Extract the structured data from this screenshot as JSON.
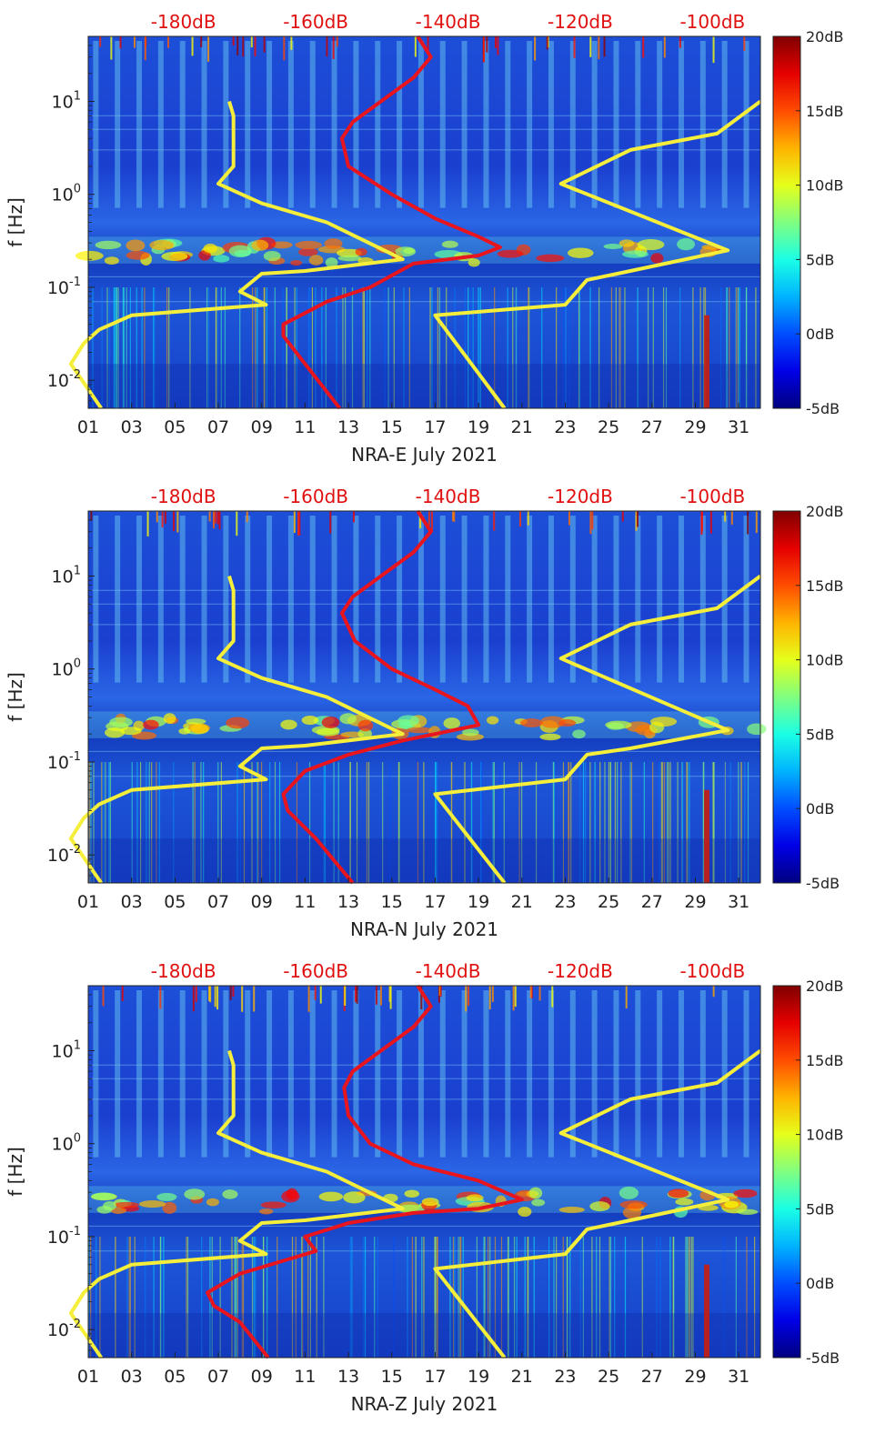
{
  "chart_data": [
    {
      "type": "heatmap",
      "title": "",
      "xlabel": "NRA-E July 2021",
      "ylabel": "f [Hz]",
      "x_day_range": [
        1,
        32
      ],
      "y_log_range": [
        0.005,
        50
      ],
      "x_tick_labels": [
        "01",
        "03",
        "05",
        "07",
        "09",
        "11",
        "13",
        "15",
        "17",
        "19",
        "21",
        "23",
        "25",
        "27",
        "29",
        "31"
      ],
      "y_ticks": [
        {
          "value": 10,
          "exp": "1"
        },
        {
          "value": 1,
          "exp": "0"
        },
        {
          "value": 0.1,
          "exp": "-1"
        },
        {
          "value": 0.01,
          "exp": "-2"
        }
      ],
      "top_axis_labels": [
        "-180dB",
        "-160dB",
        "-140dB",
        "-120dB",
        "-100dB"
      ],
      "colorbar_labels": [
        "20dB",
        "15dB",
        "10dB",
        "5dB",
        "0dB",
        "-5dB"
      ],
      "colorbar_range": [
        -5,
        20
      ],
      "colors": {
        "red_line": "#e8141e",
        "yellow_line": "#f5ee3a"
      },
      "yellow_left": [
        [
          7.5,
          10
        ],
        [
          7.7,
          7
        ],
        [
          7.7,
          2
        ],
        [
          7,
          1.3
        ],
        [
          9,
          0.8
        ],
        [
          12,
          0.5
        ],
        [
          15.5,
          0.2
        ],
        [
          11,
          0.15
        ],
        [
          9,
          0.14
        ],
        [
          8,
          0.09
        ],
        [
          9.2,
          0.065
        ],
        [
          3,
          0.05
        ],
        [
          1.5,
          0.035
        ],
        [
          0.8,
          0.025
        ],
        [
          0.2,
          0.015
        ],
        [
          1.6,
          0.005
        ]
      ],
      "yellow_right": [
        [
          32,
          10
        ],
        [
          30,
          4.5
        ],
        [
          26,
          3
        ],
        [
          22.8,
          1.3
        ],
        [
          30.5,
          0.25
        ],
        [
          26,
          0.15
        ],
        [
          24,
          0.12
        ],
        [
          23,
          0.065
        ],
        [
          17,
          0.05
        ],
        [
          20.2,
          0.005
        ]
      ],
      "red_line": [
        [
          12.6,
          0.005
        ],
        [
          11,
          0.015
        ],
        [
          10,
          0.03
        ],
        [
          10,
          0.04
        ],
        [
          12,
          0.07
        ],
        [
          14,
          0.1
        ],
        [
          16,
          0.18
        ],
        [
          19,
          0.22
        ],
        [
          20,
          0.27
        ],
        [
          19,
          0.35
        ],
        [
          17,
          0.55
        ],
        [
          15,
          1
        ],
        [
          13,
          2
        ],
        [
          12.7,
          4
        ],
        [
          13.2,
          6
        ],
        [
          14.5,
          10
        ],
        [
          16,
          18
        ],
        [
          16.8,
          30
        ],
        [
          16.2,
          50
        ]
      ]
    },
    {
      "type": "heatmap",
      "title": "",
      "xlabel": "NRA-N July 2021",
      "ylabel": "f [Hz]",
      "x_day_range": [
        1,
        32
      ],
      "y_log_range": [
        0.005,
        50
      ],
      "x_tick_labels": [
        "01",
        "03",
        "05",
        "07",
        "09",
        "11",
        "13",
        "15",
        "17",
        "19",
        "21",
        "23",
        "25",
        "27",
        "29",
        "31"
      ],
      "y_ticks": [
        {
          "value": 10,
          "exp": "1"
        },
        {
          "value": 1,
          "exp": "0"
        },
        {
          "value": 0.1,
          "exp": "-1"
        },
        {
          "value": 0.01,
          "exp": "-2"
        }
      ],
      "top_axis_labels": [
        "-180dB",
        "-160dB",
        "-140dB",
        "-120dB",
        "-100dB"
      ],
      "colorbar_labels": [
        "20dB",
        "15dB",
        "10dB",
        "5dB",
        "0dB",
        "-5dB"
      ],
      "colorbar_range": [
        -5,
        20
      ],
      "colors": {
        "red_line": "#e8141e",
        "yellow_line": "#f5ee3a"
      },
      "yellow_left": [
        [
          7.5,
          10
        ],
        [
          7.7,
          7
        ],
        [
          7.7,
          2
        ],
        [
          7,
          1.3
        ],
        [
          9,
          0.8
        ],
        [
          12,
          0.5
        ],
        [
          15.5,
          0.2
        ],
        [
          11,
          0.15
        ],
        [
          9,
          0.14
        ],
        [
          8,
          0.09
        ],
        [
          9.2,
          0.065
        ],
        [
          3,
          0.05
        ],
        [
          1.5,
          0.035
        ],
        [
          0.8,
          0.025
        ],
        [
          0.2,
          0.015
        ],
        [
          1.6,
          0.005
        ]
      ],
      "yellow_right": [
        [
          32,
          10
        ],
        [
          30,
          4.5
        ],
        [
          26,
          3
        ],
        [
          22.8,
          1.3
        ],
        [
          30.5,
          0.22
        ],
        [
          26,
          0.14
        ],
        [
          24,
          0.12
        ],
        [
          23,
          0.065
        ],
        [
          17,
          0.045
        ],
        [
          20.2,
          0.005
        ]
      ],
      "red_line": [
        [
          13.2,
          0.005
        ],
        [
          11.5,
          0.015
        ],
        [
          10.2,
          0.03
        ],
        [
          10,
          0.045
        ],
        [
          11,
          0.08
        ],
        [
          13,
          0.12
        ],
        [
          15.5,
          0.17
        ],
        [
          17,
          0.2
        ],
        [
          19,
          0.25
        ],
        [
          18.5,
          0.4
        ],
        [
          17,
          0.6
        ],
        [
          15,
          1
        ],
        [
          13.3,
          2
        ],
        [
          12.7,
          4
        ],
        [
          13.2,
          6
        ],
        [
          14.5,
          10
        ],
        [
          16,
          18
        ],
        [
          16.8,
          30
        ],
        [
          16.2,
          50
        ]
      ]
    },
    {
      "type": "heatmap",
      "title": "",
      "xlabel": "NRA-Z July 2021",
      "ylabel": "f [Hz]",
      "x_day_range": [
        1,
        32
      ],
      "y_log_range": [
        0.005,
        50
      ],
      "x_tick_labels": [
        "01",
        "03",
        "05",
        "07",
        "09",
        "11",
        "13",
        "15",
        "17",
        "19",
        "21",
        "23",
        "25",
        "27",
        "29",
        "31"
      ],
      "y_ticks": [
        {
          "value": 10,
          "exp": "1"
        },
        {
          "value": 1,
          "exp": "0"
        },
        {
          "value": 0.1,
          "exp": "-1"
        },
        {
          "value": 0.01,
          "exp": "-2"
        }
      ],
      "top_axis_labels": [
        "-180dB",
        "-160dB",
        "-140dB",
        "-120dB",
        "-100dB"
      ],
      "colorbar_labels": [
        "20dB",
        "15dB",
        "10dB",
        "5dB",
        "0dB",
        "-5dB"
      ],
      "colorbar_range": [
        -5,
        20
      ],
      "colors": {
        "red_line": "#e8141e",
        "yellow_line": "#f5ee3a"
      },
      "yellow_left": [
        [
          7.5,
          10
        ],
        [
          7.7,
          7
        ],
        [
          7.7,
          2
        ],
        [
          7,
          1.3
        ],
        [
          9,
          0.8
        ],
        [
          12,
          0.5
        ],
        [
          15.5,
          0.2
        ],
        [
          11,
          0.15
        ],
        [
          9,
          0.14
        ],
        [
          8,
          0.09
        ],
        [
          9.2,
          0.065
        ],
        [
          3,
          0.05
        ],
        [
          1.5,
          0.035
        ],
        [
          0.8,
          0.025
        ],
        [
          0.2,
          0.015
        ],
        [
          1.6,
          0.005
        ]
      ],
      "yellow_right": [
        [
          32,
          10
        ],
        [
          30,
          4.5
        ],
        [
          26,
          3
        ],
        [
          22.8,
          1.3
        ],
        [
          30.5,
          0.25
        ],
        [
          26,
          0.15
        ],
        [
          24,
          0.12
        ],
        [
          23,
          0.065
        ],
        [
          17,
          0.045
        ],
        [
          20.2,
          0.005
        ]
      ],
      "red_line": [
        [
          9.3,
          0.005
        ],
        [
          8,
          0.012
        ],
        [
          6.8,
          0.018
        ],
        [
          6.5,
          0.025
        ],
        [
          8,
          0.04
        ],
        [
          10,
          0.055
        ],
        [
          11.5,
          0.07
        ],
        [
          11,
          0.1
        ],
        [
          13,
          0.14
        ],
        [
          16,
          0.18
        ],
        [
          19,
          0.2
        ],
        [
          21,
          0.25
        ],
        [
          19,
          0.4
        ],
        [
          16,
          0.6
        ],
        [
          14,
          1
        ],
        [
          13,
          2
        ],
        [
          12.8,
          4
        ],
        [
          13.2,
          6
        ],
        [
          14.5,
          10
        ],
        [
          16,
          18
        ],
        [
          16.8,
          30
        ],
        [
          16.2,
          50
        ]
      ]
    }
  ]
}
